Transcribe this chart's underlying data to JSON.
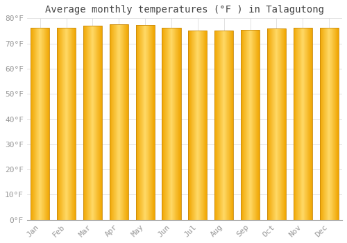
{
  "title": "Average monthly temperatures (°F ) in Talagutong",
  "months": [
    "Jan",
    "Feb",
    "Mar",
    "Apr",
    "May",
    "Jun",
    "Jul",
    "Aug",
    "Sep",
    "Oct",
    "Nov",
    "Dec"
  ],
  "values": [
    76.1,
    76.1,
    77.0,
    77.5,
    77.4,
    76.1,
    75.2,
    75.2,
    75.4,
    76.0,
    76.3,
    76.3
  ],
  "bar_color_center": "#FFD966",
  "bar_color_edge": "#F0A500",
  "background_color": "#FFFFFF",
  "grid_color": "#DDDDDD",
  "text_color": "#999999",
  "spine_color": "#AAAAAA",
  "ylim": [
    0,
    80
  ],
  "yticks": [
    0,
    10,
    20,
    30,
    40,
    50,
    60,
    70,
    80
  ],
  "title_fontsize": 10,
  "tick_fontsize": 8,
  "bar_width": 0.72
}
